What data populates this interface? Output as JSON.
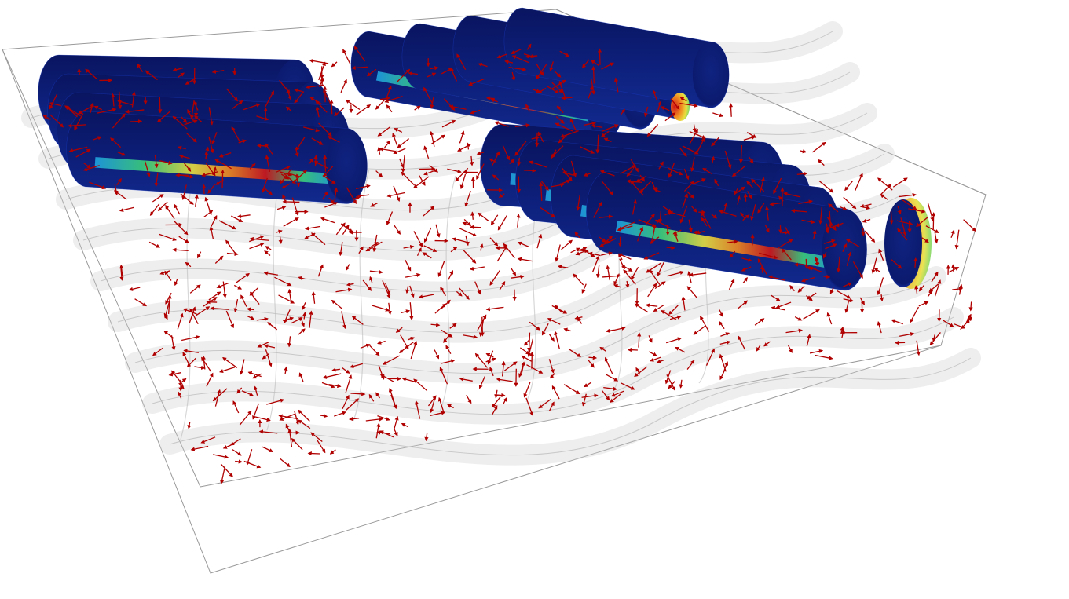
{
  "view": {
    "background_color": "#ffffff",
    "bounding_box_color": "#9a9a9a",
    "surface_color": "#d8d8d8",
    "arrow_color": "#b00000",
    "colormap": [
      "#0b1a6e",
      "#1a3cc8",
      "#1fa0e0",
      "#3cd07a",
      "#e8e040",
      "#f08a20",
      "#d01818"
    ]
  }
}
